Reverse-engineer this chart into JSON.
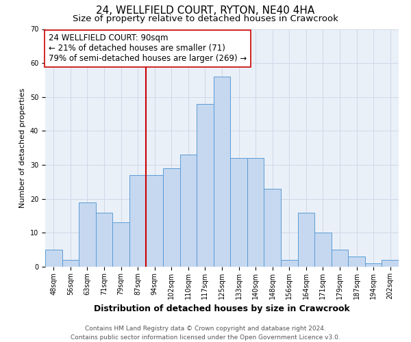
{
  "title": "24, WELLFIELD COURT, RYTON, NE40 4HA",
  "subtitle": "Size of property relative to detached houses in Crawcrook",
  "xlabel": "Distribution of detached houses by size in Crawcrook",
  "ylabel": "Number of detached properties",
  "bar_labels": [
    "48sqm",
    "56sqm",
    "63sqm",
    "71sqm",
    "79sqm",
    "87sqm",
    "94sqm",
    "102sqm",
    "110sqm",
    "117sqm",
    "125sqm",
    "133sqm",
    "140sqm",
    "148sqm",
    "156sqm",
    "164sqm",
    "171sqm",
    "179sqm",
    "187sqm",
    "194sqm",
    "202sqm"
  ],
  "bar_values": [
    5,
    2,
    19,
    16,
    13,
    27,
    27,
    29,
    33,
    48,
    56,
    32,
    32,
    23,
    2,
    16,
    10,
    5,
    3,
    1,
    2
  ],
  "bar_color": "#c5d8f0",
  "bar_edge_color": "#5b9bd5",
  "vline_x_idx": 6,
  "vline_color": "#cc0000",
  "annotation_text": "24 WELLFIELD COURT: 90sqm\n← 21% of detached houses are smaller (71)\n79% of semi-detached houses are larger (269) →",
  "annotation_box_color": "white",
  "annotation_box_edge_color": "#cc0000",
  "ylim": [
    0,
    70
  ],
  "yticks": [
    0,
    10,
    20,
    30,
    40,
    50,
    60,
    70
  ],
  "grid_color": "#d0d8e8",
  "bg_color": "#eaf0f8",
  "footer_text": "Contains HM Land Registry data © Crown copyright and database right 2024.\nContains public sector information licensed under the Open Government Licence v3.0.",
  "title_fontsize": 11,
  "subtitle_fontsize": 9.5,
  "xlabel_fontsize": 9,
  "ylabel_fontsize": 8,
  "tick_fontsize": 7,
  "annotation_fontsize": 8.5,
  "footer_fontsize": 6.5
}
